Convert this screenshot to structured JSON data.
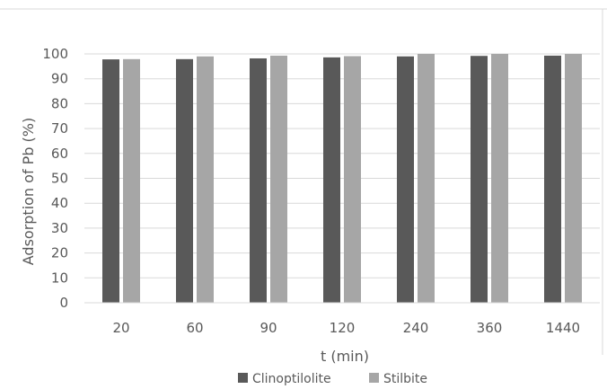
{
  "chart_data": {
    "type": "bar",
    "title": "",
    "xlabel": "t (min)",
    "ylabel": "Adsorption of Pb (%)",
    "categories": [
      "20",
      "60",
      "90",
      "120",
      "240",
      "360",
      "1440"
    ],
    "series": [
      {
        "name": "Clinoptilolite",
        "color": "#595959",
        "values": [
          97.8,
          97.9,
          98.2,
          98.6,
          99.0,
          99.2,
          99.3
        ]
      },
      {
        "name": "Stilbite",
        "color": "#a6a6a6",
        "values": [
          97.9,
          99.0,
          99.3,
          99.1,
          100.0,
          100.0,
          100.0
        ]
      }
    ],
    "ylim": [
      0,
      100
    ],
    "yticks": [
      0,
      10,
      20,
      30,
      40,
      50,
      60,
      70,
      80,
      90,
      100
    ],
    "grid": true,
    "legend_position": "bottom"
  }
}
